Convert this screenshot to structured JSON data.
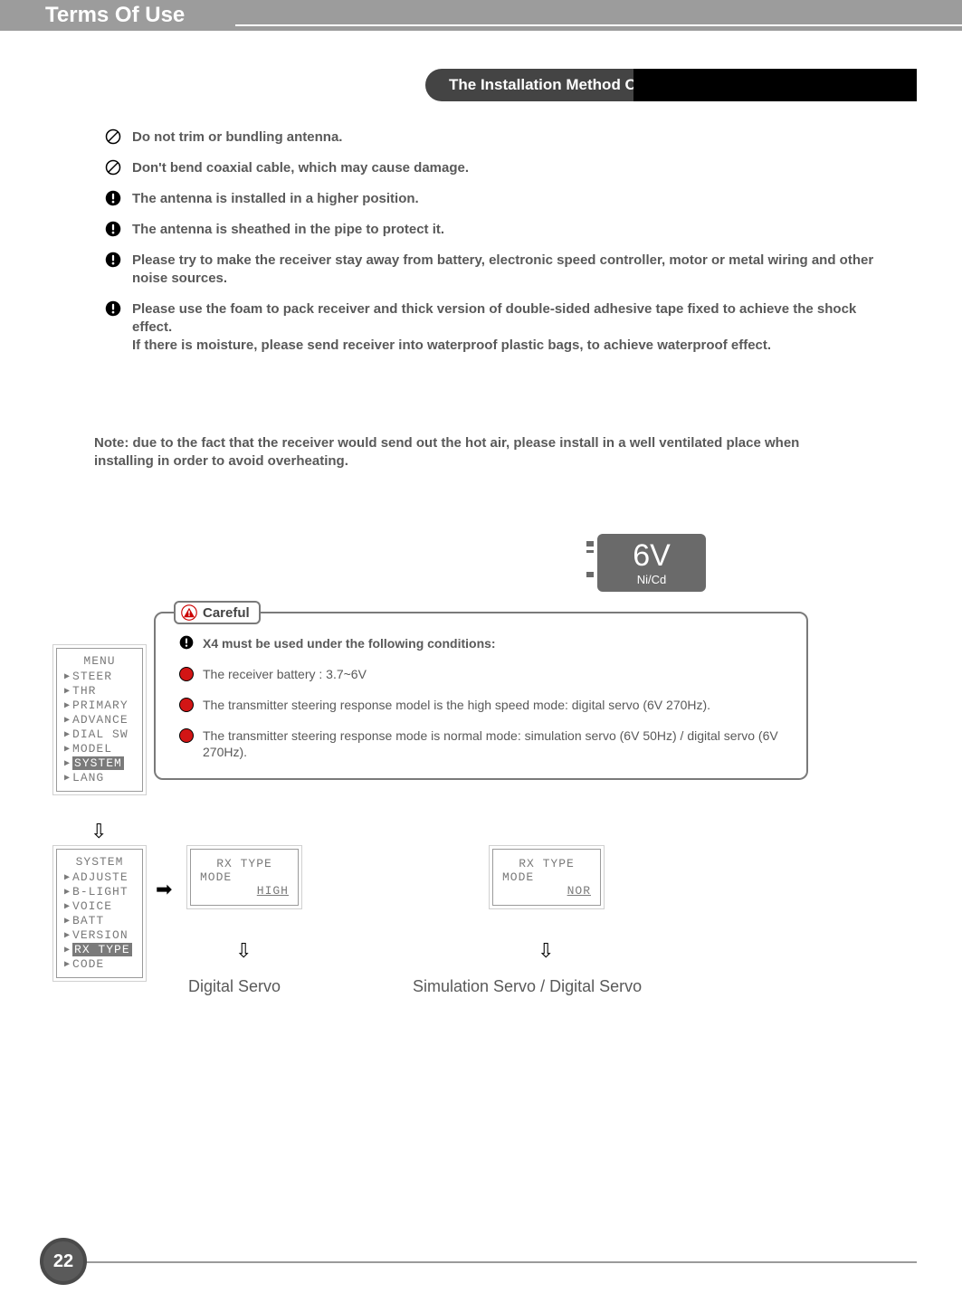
{
  "header": {
    "title": "Terms Of Use"
  },
  "section_title": "The Installation Method Of Receiver",
  "warnings": [
    {
      "icon": "prohibit",
      "text": "Do not trim or bundling antenna."
    },
    {
      "icon": "prohibit",
      "text": "Don't bend coaxial cable, which may cause damage."
    },
    {
      "icon": "exclaim",
      "text": "The antenna is installed in a higher position."
    },
    {
      "icon": "exclaim",
      "text": "The antenna is sheathed in the pipe to protect it."
    },
    {
      "icon": "exclaim",
      "text": "Please try to make the receiver stay away from battery, electronic speed controller, motor or metal wiring and other noise sources."
    },
    {
      "icon": "exclaim",
      "text": "Please use the foam to pack receiver and thick version of double-sided adhesive tape fixed to achieve the shock effect.\nIf there is moisture, please send receiver into waterproof plastic bags, to achieve waterproof effect."
    }
  ],
  "note": "Note: due to the fact that the receiver would send out the hot air, please install in a well ventilated place when installing in order to avoid overheating.",
  "battery": {
    "voltage": "6V",
    "type": "Ni/Cd"
  },
  "careful": {
    "label": "Careful",
    "heading": "X4 must be used under the following conditions:",
    "bullets": [
      "The receiver battery :  3.7~6V",
      "The transmitter steering response model is the high speed mode: digital servo (6V 270Hz).",
      "The transmitter steering response mode is normal mode: simulation servo (6V 50Hz) / digital servo (6V 270Hz)."
    ]
  },
  "menu_lcd": {
    "title": "MENU",
    "items": [
      "STEER",
      "THR",
      "PRIMARY",
      "ADVANCE",
      "DIAL SW",
      "MODEL",
      "SYSTEM",
      "LANG"
    ],
    "selected": "SYSTEM"
  },
  "system_lcd": {
    "title": "SYSTEM",
    "items": [
      "ADJUSTE",
      "B-LIGHT",
      "VOICE",
      "BATT",
      "VERSION",
      "RX TYPE",
      "CODE"
    ],
    "selected": "RX TYPE"
  },
  "rx_high": {
    "l1": "RX TYPE",
    "l2": "MODE",
    "l3": "HIGH"
  },
  "rx_nor": {
    "l1": "RX TYPE",
    "l2": "MODE",
    "l3": "NOR"
  },
  "servo_labels": {
    "left": "Digital Servo",
    "right": "Simulation Servo / Digital Servo"
  },
  "colors": {
    "header_band": "#9c9c9c",
    "pill_bg": "#444444",
    "bar_bg": "#000000",
    "text": "#595959",
    "red": "#d21515",
    "lcd": "#7a7a7a",
    "battery": "#6a6a6a"
  },
  "page_number": "22"
}
